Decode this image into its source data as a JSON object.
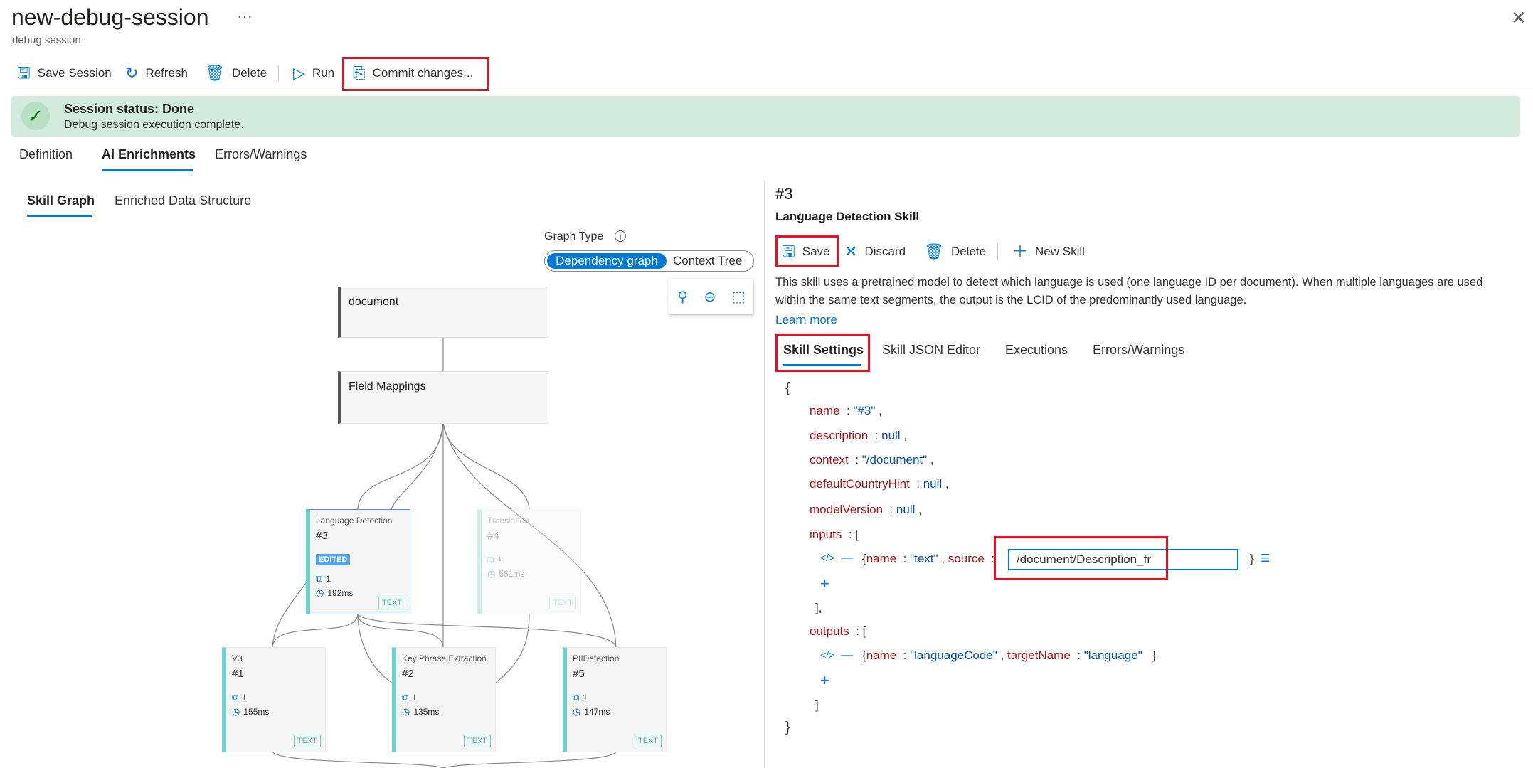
{
  "header": {
    "title": "new-debug-session",
    "more": "···",
    "subtitle": "debug session",
    "close": "✕"
  },
  "toolbar": {
    "save_session": "Save Session",
    "refresh": "Refresh",
    "delete": "Delete",
    "run": "Run",
    "commit": "Commit changes..."
  },
  "status": {
    "title": "Session status: Done",
    "message": "Debug session execution complete.",
    "color": "#d3ebdc"
  },
  "tabs": [
    "Definition",
    "AI Enrichments",
    "Errors/Warnings"
  ],
  "subtabs": [
    "Skill Graph",
    "Enriched Data Structure"
  ],
  "graph": {
    "type_label": "Graph Type",
    "options": [
      "Dependency graph",
      "Context Tree"
    ],
    "selected": "Dependency graph",
    "nodes": {
      "document": "document",
      "field_mappings": "Field Mappings"
    },
    "skills": [
      {
        "type": "Language Detection",
        "id": "#3",
        "badge": "EDITED",
        "count": "1",
        "time": "192ms",
        "tag": "TEXT"
      },
      {
        "type": "Translation",
        "id": "#4",
        "count": "1",
        "time": "581ms",
        "tag": "TEXT"
      },
      {
        "type": "V3",
        "id": "#1",
        "count": "1",
        "time": "155ms",
        "tag": "TEXT"
      },
      {
        "type": "Key Phrase Extraction",
        "id": "#2",
        "count": "1",
        "time": "135ms",
        "tag": "TEXT"
      },
      {
        "type": "PIIDetection",
        "id": "#5",
        "count": "1",
        "time": "147ms",
        "tag": "TEXT"
      }
    ]
  },
  "detail": {
    "id": "#3",
    "name": "Language Detection Skill",
    "toolbar": {
      "save": "Save",
      "discard": "Discard",
      "delete": "Delete",
      "new_skill": "New Skill"
    },
    "description": "This skill uses a pretrained model to detect which language is used (one language ID per document). When multiple languages are used within the same text segments, the output is the LCID of the predominantly used language.",
    "learn_more": "Learn more",
    "tabs": [
      "Skill Settings",
      "Skill JSON Editor",
      "Executions",
      "Errors/Warnings"
    ],
    "json": {
      "open": "{",
      "close": "}",
      "name_key": "name",
      "name_val": "\"#3\"",
      "description_key": "description",
      "description_val": "null",
      "context_key": "context",
      "context_val": "\"/document\"",
      "dch_key": "defaultCountryHint",
      "dch_val": "null",
      "mv_key": "modelVersion",
      "mv_val": "null",
      "inputs_key": "inputs",
      "input": {
        "name_key": "name",
        "name_val": "\"text\"",
        "source_key": "source",
        "source_val": "/document/Description_fr"
      },
      "outputs_key": "outputs",
      "output": {
        "name_key": "name",
        "name_val": "\"languageCode\"",
        "target_key": "targetName",
        "target_val": "\"language\""
      }
    }
  }
}
